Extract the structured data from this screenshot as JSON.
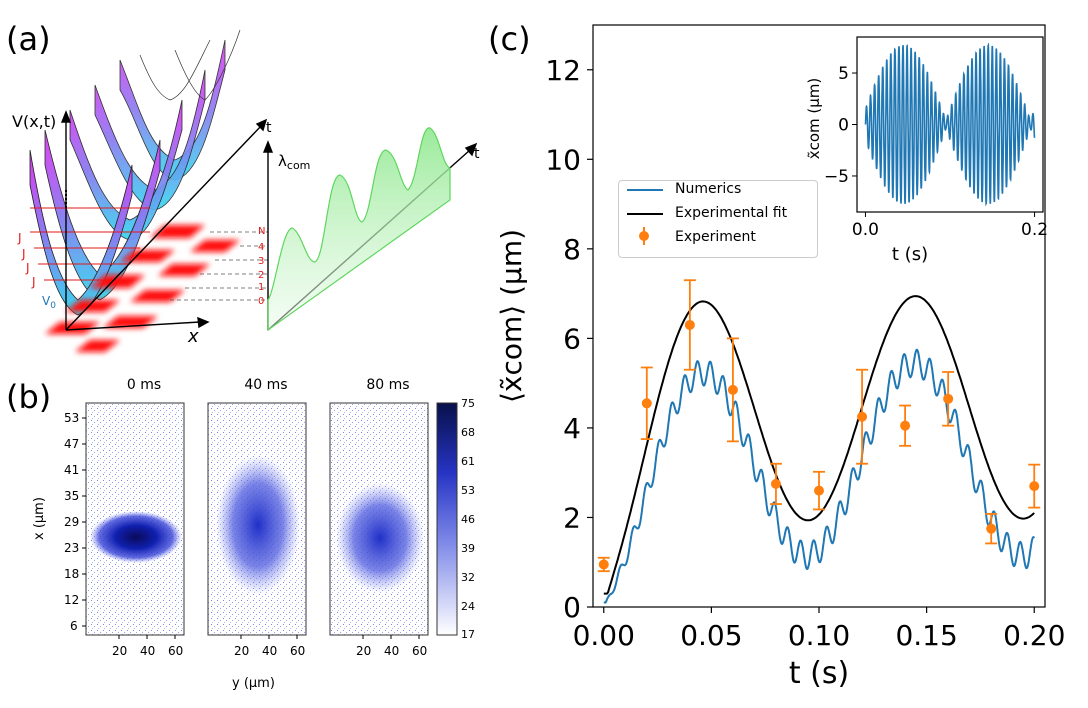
{
  "panel_a": {
    "label": "(a)",
    "potential_label": "V(x,t)",
    "t_axis": "t",
    "x_axis": "x",
    "lambda_label": "λ",
    "lambda_sub": "com",
    "t_axis_right": "t",
    "J_label": "J",
    "V0_label": "V",
    "V0_sub": "0",
    "levels": [
      "N",
      "4",
      "3",
      "2",
      "1",
      "0"
    ]
  },
  "panel_b": {
    "label": "(b)",
    "titles": [
      "0 ms",
      "40 ms",
      "80 ms"
    ],
    "ylabel": "x (μm)",
    "xlabel": "y (μm)",
    "yticks": [
      "53",
      "47",
      "41",
      "35",
      "29",
      "23",
      "18",
      "12",
      "6"
    ],
    "xticks": [
      "20",
      "40",
      "60"
    ],
    "colorbar_ticks": [
      "75",
      "68",
      "61",
      "53",
      "46",
      "39",
      "32",
      "24",
      "17"
    ]
  },
  "panel_c": {
    "label": "(c)",
    "colors": {
      "numerics": "#1f77b4",
      "fit": "#000000",
      "experiment": "#ff7f0e"
    }
  },
  "chart_data": [
    {
      "type": "line",
      "title": "",
      "xlabel": "t (s)",
      "ylabel": "⟨x̃com⟩ (μm)",
      "xlim": [
        -0.005,
        0.205
      ],
      "ylim": [
        0,
        13
      ],
      "xticks": [
        "0.00",
        "0.05",
        "0.10",
        "0.15",
        "0.20"
      ],
      "yticks": [
        "0",
        "2",
        "4",
        "6",
        "8",
        "10",
        "12"
      ],
      "legend": [
        "Numerics",
        "Experimental fit",
        "Experiment"
      ],
      "legend_position": "center-left",
      "series": [
        {
          "name": "Numerics",
          "kind": "line",
          "base_amplitude": 2.15,
          "offset": 3.3,
          "period": 0.1,
          "ripple_amplitude": 0.3,
          "ripple_period": 0.006,
          "t_range": [
            0,
            0.2
          ]
        },
        {
          "name": "Experimental fit",
          "kind": "line",
          "amplitude": 2.55,
          "offset": 4.45,
          "period": 0.1,
          "t_range": [
            0,
            0.2
          ]
        },
        {
          "name": "Experiment",
          "kind": "errorbar",
          "x": [
            0.0,
            0.02,
            0.04,
            0.06,
            0.08,
            0.1,
            0.12,
            0.14,
            0.16,
            0.18,
            0.2
          ],
          "y": [
            0.95,
            4.55,
            6.3,
            4.85,
            2.75,
            2.6,
            4.25,
            4.05,
            4.65,
            1.75,
            2.7
          ],
          "yerr": [
            0.15,
            0.8,
            1.0,
            1.15,
            0.45,
            0.42,
            1.05,
            0.45,
            0.6,
            0.33,
            0.48
          ]
        }
      ]
    },
    {
      "type": "line",
      "title": "",
      "xlabel": "t (s)",
      "ylabel": "x̃com (μm)",
      "xlim": [
        -0.01,
        0.21
      ],
      "ylim": [
        -8.5,
        8.5
      ],
      "xticks": [
        "0.0",
        "0.2"
      ],
      "yticks": [
        "5",
        "0",
        "−5"
      ],
      "series": [
        {
          "name": "Inset oscillation",
          "envelope_amplitude": 7.7,
          "envelope_period": 0.2,
          "carrier_period": 0.0048
        }
      ]
    }
  ]
}
